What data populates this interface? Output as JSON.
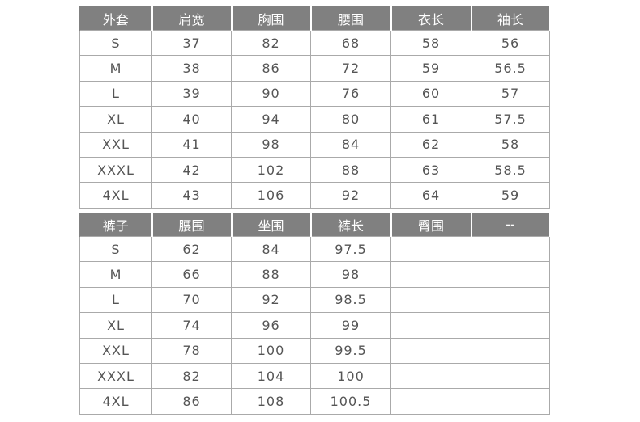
{
  "jacket": {
    "headers": [
      "外套",
      "肩宽",
      "胸围",
      "腰围",
      "衣长",
      "袖长"
    ],
    "rows": [
      [
        "S",
        "37",
        "82",
        "68",
        "58",
        "56"
      ],
      [
        "M",
        "38",
        "86",
        "72",
        "59",
        "56.5"
      ],
      [
        "L",
        "39",
        "90",
        "76",
        "60",
        "57"
      ],
      [
        "XL",
        "40",
        "94",
        "80",
        "61",
        "57.5"
      ],
      [
        "XXL",
        "41",
        "98",
        "84",
        "62",
        "58"
      ],
      [
        "XXXL",
        "42",
        "102",
        "88",
        "63",
        "58.5"
      ],
      [
        "4XL",
        "43",
        "106",
        "92",
        "64",
        "59"
      ]
    ]
  },
  "pants": {
    "headers": [
      "裤子",
      "腰围",
      "坐围",
      "裤长",
      "臀围",
      "--"
    ],
    "rows": [
      [
        "S",
        "62",
        "84",
        "97.5",
        "",
        ""
      ],
      [
        "M",
        "66",
        "88",
        "98",
        "",
        ""
      ],
      [
        "L",
        "70",
        "92",
        "98.5",
        "",
        ""
      ],
      [
        "XL",
        "74",
        "96",
        "99",
        "",
        ""
      ],
      [
        "XXL",
        "78",
        "100",
        "99.5",
        "",
        ""
      ],
      [
        "XXXL",
        "82",
        "104",
        "100",
        "",
        ""
      ],
      [
        "4XL",
        "86",
        "108",
        "100.5",
        "",
        ""
      ]
    ]
  },
  "colors": {
    "header_bg": "#808080",
    "header_text": "#ffffff",
    "cell_text": "#555555",
    "border": "#aaaaaa"
  }
}
